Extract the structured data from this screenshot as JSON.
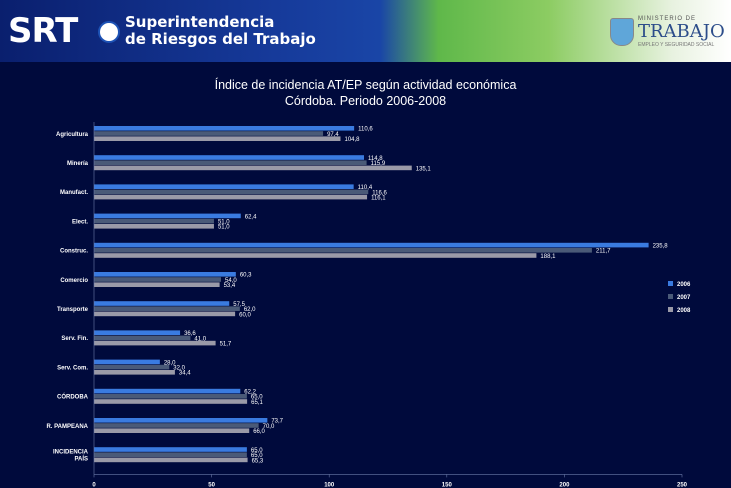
{
  "header": {
    "logo_text": "SRT",
    "org_line1": "Superintendencia",
    "org_line2": "de Riesgos del Trabajo",
    "ministry_top": "MINISTERIO DE",
    "ministry_name": "TRABAJO",
    "ministry_sub": "EMPLEO Y SEGURIDAD SOCIAL"
  },
  "colors": {
    "background": "#000a3c",
    "series_2006": "#3a7be0",
    "series_2007": "#4a5a78",
    "series_2008": "#9a9aa8"
  },
  "chart_data": {
    "type": "bar",
    "orientation": "horizontal",
    "title": "Índice de incidencia AT/EP según actividad económica",
    "subtitle": "Córdoba. Periodo 2006-2008",
    "categories": [
      "Agricultura",
      "Minería",
      "Manufact.",
      "Elect.",
      "Construc.",
      "Comercio",
      "Transporte",
      "Serv. Fin.",
      "Serv. Com.",
      "CÓRDOBA",
      "R. PAMPEANA",
      "INCIDENCIA PAÍS"
    ],
    "series": [
      {
        "name": "2006",
        "values": [
          110.6,
          114.8,
          110.4,
          62.4,
          235.8,
          60.3,
          57.5,
          36.6,
          28.0,
          62.2,
          73.7,
          65.0
        ]
      },
      {
        "name": "2007",
        "values": [
          97.4,
          115.9,
          116.6,
          51.0,
          211.7,
          54.0,
          62.0,
          41.0,
          32.0,
          65.0,
          70.0,
          65.0
        ]
      },
      {
        "name": "2008",
        "values": [
          104.8,
          135.1,
          116.1,
          51.0,
          188.1,
          53.4,
          60.0,
          51.7,
          34.4,
          65.1,
          66.0,
          65.3
        ]
      }
    ],
    "value_labels": [
      [
        "110,6",
        "97,4",
        "104,8"
      ],
      [
        "114,8",
        "115,9",
        "135,1"
      ],
      [
        "110,4",
        "116,6",
        "116,1"
      ],
      [
        "62,4",
        "51,0",
        "51,0"
      ],
      [
        "235,8",
        "211,7",
        "188,1"
      ],
      [
        "60,3",
        "54,0",
        "53,4"
      ],
      [
        "57,5",
        "62,0",
        "60,0"
      ],
      [
        "36,6",
        "41,0",
        "51,7"
      ],
      [
        "28,0",
        "32,0",
        "34,4"
      ],
      [
        "62,2",
        "65,0",
        "65,1"
      ],
      [
        "73,7",
        "70,0",
        "66,0"
      ],
      [
        "65,0",
        "65,0",
        "65,3"
      ]
    ],
    "xlim": [
      0,
      250
    ],
    "ticks": [
      "0",
      "50",
      "100",
      "150",
      "200",
      "250"
    ],
    "legend": [
      "2006",
      "2007",
      "2008"
    ],
    "legend_position": "right",
    "grid": false
  }
}
